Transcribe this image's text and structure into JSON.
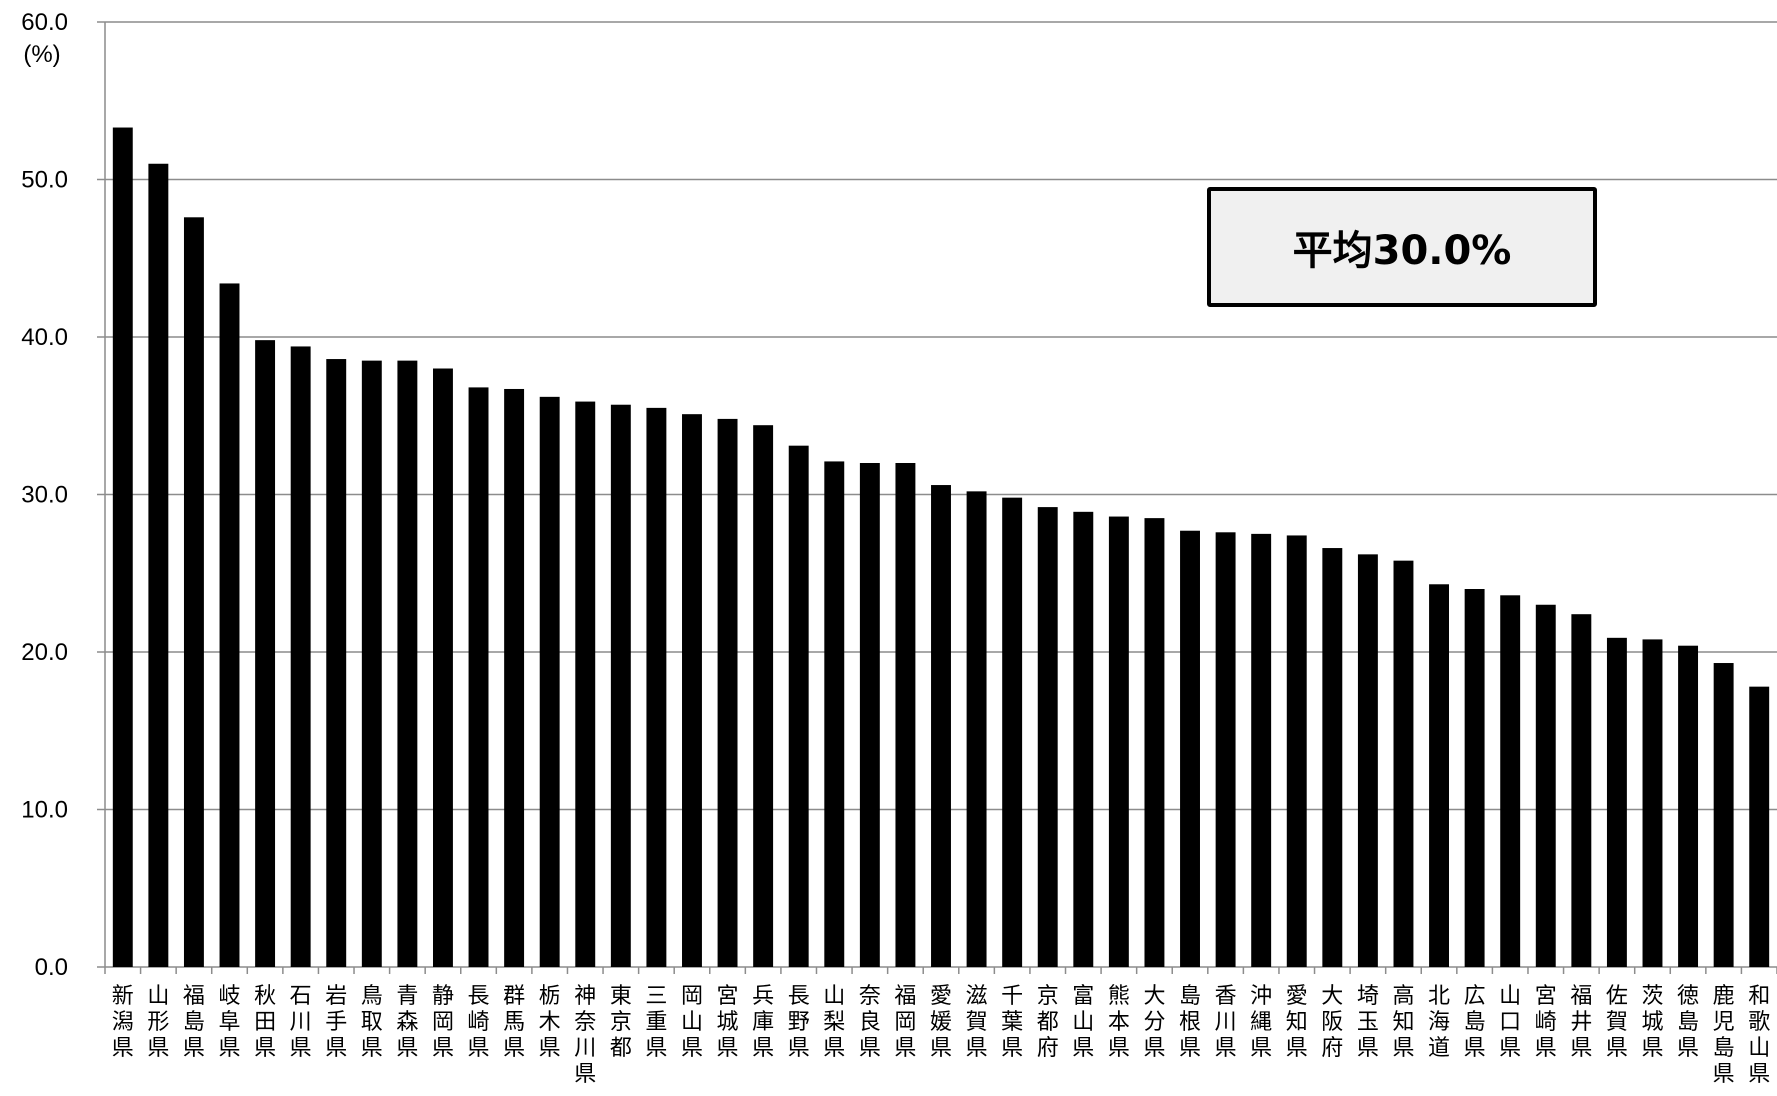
{
  "chart_data": {
    "type": "bar",
    "ylabel": "(%)",
    "ylim": [
      0,
      60
    ],
    "yticks": [
      "0.0",
      "10.0",
      "20.0",
      "30.0",
      "40.0",
      "50.0",
      "60.0"
    ],
    "grid": true,
    "bar_color": "#000000",
    "annotation": "平均30.0%",
    "categories": [
      "新潟県",
      "山形県",
      "福島県",
      "岐阜県",
      "秋田県",
      "石川県",
      "岩手県",
      "鳥取県",
      "青森県",
      "静岡県",
      "長崎県",
      "群馬県",
      "栃木県",
      "神奈川県",
      "東京都",
      "三重県",
      "岡山県",
      "宮城県",
      "兵庫県",
      "長野県",
      "山梨県",
      "奈良県",
      "福岡県",
      "愛媛県",
      "滋賀県",
      "千葉県",
      "京都府",
      "富山県",
      "熊本県",
      "大分県",
      "島根県",
      "香川県",
      "沖縄県",
      "愛知県",
      "大阪府",
      "埼玉県",
      "高知県",
      "北海道",
      "広島県",
      "山口県",
      "宮崎県",
      "福井県",
      "佐賀県",
      "茨城県",
      "徳島県",
      "鹿児島県",
      "和歌山県"
    ],
    "values": [
      53.3,
      51.0,
      47.6,
      43.4,
      39.8,
      39.4,
      38.6,
      38.5,
      38.5,
      38.0,
      36.8,
      36.7,
      36.2,
      35.9,
      35.7,
      35.5,
      35.1,
      34.8,
      34.4,
      33.1,
      32.1,
      32.0,
      32.0,
      30.6,
      30.2,
      29.8,
      29.2,
      28.9,
      28.6,
      28.5,
      27.7,
      27.6,
      27.5,
      27.4,
      26.6,
      26.2,
      25.8,
      24.3,
      24.0,
      23.6,
      23.0,
      22.4,
      20.9,
      20.8,
      20.4,
      19.3,
      17.8
    ]
  }
}
